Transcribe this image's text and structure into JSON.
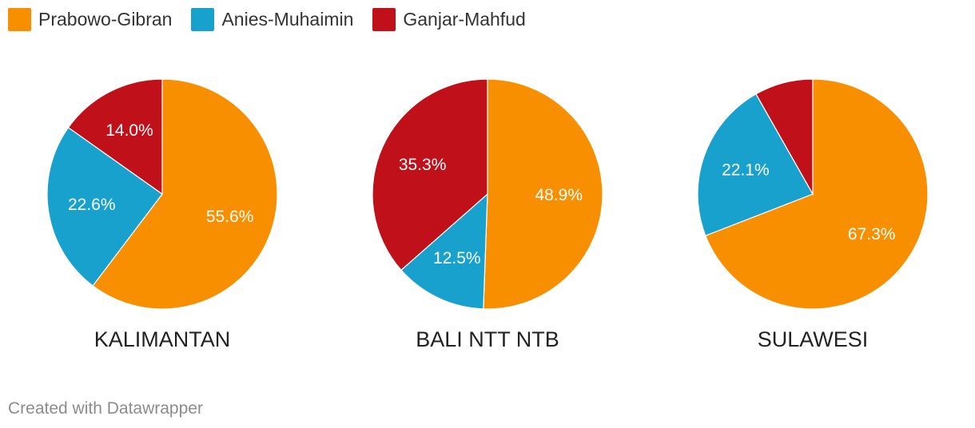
{
  "legend": [
    {
      "label": "Prabowo-Gibran",
      "color": "#f88f01"
    },
    {
      "label": "Anies-Muhaimin",
      "color": "#19a1ce"
    },
    {
      "label": "Ganjar-Mahfud",
      "color": "#c0101a"
    }
  ],
  "chart_data": {
    "type": "pie",
    "series": [
      "Prabowo-Gibran",
      "Anies-Muhaimin",
      "Ganjar-Mahfud"
    ],
    "colors": [
      "#f88f01",
      "#19a1ce",
      "#c0101a"
    ],
    "charts": [
      {
        "label": "KALIMANTAN",
        "values": [
          55.6,
          22.6,
          14.0
        ],
        "value_labels": [
          "55.6%",
          "22.6%",
          "14.0%"
        ]
      },
      {
        "label": "BALI NTT NTB",
        "values": [
          48.9,
          12.5,
          35.3
        ],
        "value_labels": [
          "48.9%",
          "12.5%",
          "35.3%"
        ]
      },
      {
        "label": "SULAWESI",
        "values": [
          67.3,
          22.1,
          8.0
        ],
        "value_labels": [
          "67.3%",
          "22.1%",
          ""
        ]
      }
    ]
  },
  "footer": {
    "text": "Created with Datawrapper"
  }
}
